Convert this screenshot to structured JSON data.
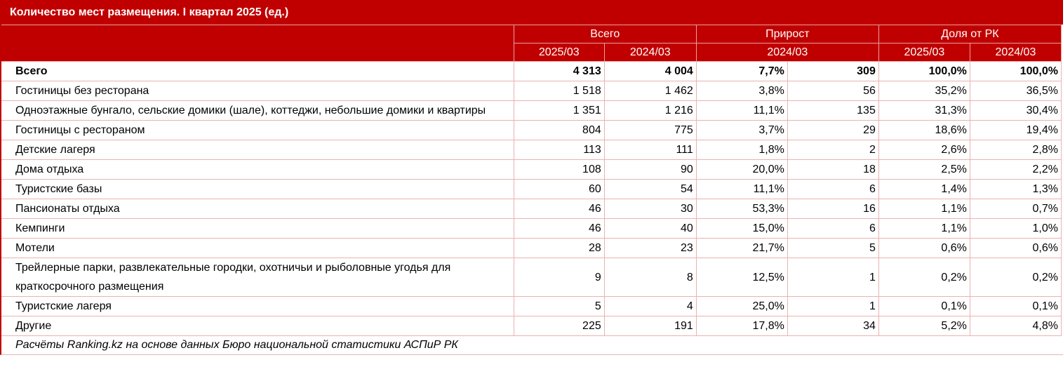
{
  "header": {
    "title": "Количество мест размещения. I квартал 2025 (ед.)"
  },
  "columns": {
    "groups": [
      "Всего",
      "Прирост",
      "Доля от РК"
    ],
    "sub": [
      "2025/03",
      "2024/03",
      "2024/03",
      "2025/03",
      "2024/03"
    ]
  },
  "table": {
    "rows": [
      {
        "label": "Всего",
        "cells": [
          "4 313",
          "4 004",
          "7,7%",
          "309",
          "100,0%",
          "100,0%"
        ]
      },
      {
        "label": "Гостиницы без ресторана",
        "cells": [
          "1 518",
          "1 462",
          "3,8%",
          "56",
          "35,2%",
          "36,5%"
        ]
      },
      {
        "label": "Одноэтажные бунгало, сельские домики (шале), коттеджи, небольшие домики и квартиры",
        "cells": [
          "1 351",
          "1 216",
          "11,1%",
          "135",
          "31,3%",
          "30,4%"
        ]
      },
      {
        "label": "Гостиницы с рестораном",
        "cells": [
          "804",
          "775",
          "3,7%",
          "29",
          "18,6%",
          "19,4%"
        ]
      },
      {
        "label": "Детские лагеря",
        "cells": [
          "113",
          "111",
          "1,8%",
          "2",
          "2,6%",
          "2,8%"
        ]
      },
      {
        "label": "Дома отдыха",
        "cells": [
          "108",
          "90",
          "20,0%",
          "18",
          "2,5%",
          "2,2%"
        ]
      },
      {
        "label": "Туристские базы",
        "cells": [
          "60",
          "54",
          "11,1%",
          "6",
          "1,4%",
          "1,3%"
        ]
      },
      {
        "label": "Пансионаты отдыха",
        "cells": [
          "46",
          "30",
          "53,3%",
          "16",
          "1,1%",
          "0,7%"
        ]
      },
      {
        "label": "Кемпинги",
        "cells": [
          "46",
          "40",
          "15,0%",
          "6",
          "1,1%",
          "1,0%"
        ]
      },
      {
        "label": "Мотели",
        "cells": [
          "28",
          "23",
          "21,7%",
          "5",
          "0,6%",
          "0,6%"
        ]
      },
      {
        "label": "Трейлерные парки, развлекательные городки, охотничьи и рыболовные угодья для краткосрочного размещения",
        "cells": [
          "9",
          "8",
          "12,5%",
          "1",
          "0,2%",
          "0,2%"
        ]
      },
      {
        "label": "Туристские лагеря",
        "cells": [
          "5",
          "4",
          "25,0%",
          "1",
          "0,1%",
          "0,1%"
        ]
      },
      {
        "label": "Другие",
        "cells": [
          "225",
          "191",
          "17,8%",
          "34",
          "5,2%",
          "4,8%"
        ]
      }
    ]
  },
  "footer": {
    "source": "Расчёты Ranking.kz на основе данных Бюро национальной статистики АСПиР РК"
  }
}
